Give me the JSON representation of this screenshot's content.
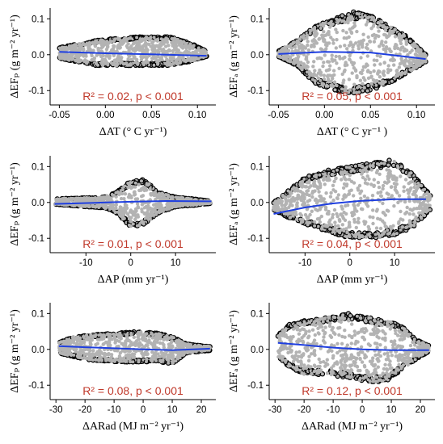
{
  "chart_data": [
    {
      "type": "scatter",
      "xlabel": "ΔAT (° C yr⁻¹)",
      "ylabel": "ΔEFₚ (g m⁻² yr⁻¹)",
      "annotation": "R² = 0.02, p < 0.001",
      "xlim": [
        -0.06,
        0.12
      ],
      "ylim": [
        -0.14,
        0.13
      ],
      "xticks": [
        -0.05,
        0.0,
        0.05,
        0.1
      ],
      "xtick_labels": [
        "-0.05",
        "0.00",
        "0.05",
        "0.10"
      ],
      "yticks": [
        -0.1,
        0.0,
        0.1
      ],
      "ytick_labels": [
        "-0.1",
        "0.0",
        "0.1"
      ],
      "cloud_x_range": [
        -0.05,
        0.11
      ],
      "cloud_envelope": [
        [
          -0.05,
          0.02,
          -0.01
        ],
        [
          -0.03,
          0.03,
          -0.02
        ],
        [
          -0.01,
          0.04,
          -0.03
        ],
        [
          0.01,
          0.045,
          -0.03
        ],
        [
          0.03,
          0.05,
          -0.03
        ],
        [
          0.05,
          0.05,
          -0.03
        ],
        [
          0.07,
          0.05,
          -0.03
        ],
        [
          0.09,
          0.035,
          -0.02
        ],
        [
          0.11,
          0.01,
          -0.005
        ]
      ],
      "fit_line": {
        "x": [
          -0.05,
          0.0,
          0.05,
          0.11
        ],
        "y": [
          0.008,
          0.004,
          0.001,
          -0.003
        ]
      },
      "colors": {
        "points": "#b3b3b3",
        "outline": "#000000",
        "fit": "#1f3fe0",
        "stats": "#c0392b"
      }
    },
    {
      "type": "scatter",
      "xlabel": "ΔAT (° C yr⁻¹ )",
      "ylabel": "ΔEFₐ (g m⁻² yr⁻¹)",
      "annotation": "R² = 0.05, p < 0.001",
      "xlim": [
        -0.06,
        0.12
      ],
      "ylim": [
        -0.14,
        0.13
      ],
      "xticks": [
        -0.05,
        0.0,
        0.05,
        0.1
      ],
      "xtick_labels": [
        "-0.05",
        "0.00",
        "0.05",
        "0.10"
      ],
      "yticks": [
        -0.1,
        0.0,
        0.1
      ],
      "ytick_labels": [
        "-0.1",
        "0.0",
        "0.1"
      ],
      "cloud_x_range": [
        -0.05,
        0.11
      ],
      "cloud_envelope": [
        [
          -0.05,
          0.01,
          -0.005
        ],
        [
          -0.03,
          0.04,
          -0.03
        ],
        [
          -0.01,
          0.08,
          -0.08
        ],
        [
          0.01,
          0.1,
          -0.1
        ],
        [
          0.03,
          0.12,
          -0.11
        ],
        [
          0.05,
          0.11,
          -0.1
        ],
        [
          0.07,
          0.08,
          -0.08
        ],
        [
          0.09,
          0.05,
          -0.05
        ],
        [
          0.11,
          0.0,
          -0.02
        ]
      ],
      "fit_line": {
        "x": [
          -0.05,
          0.0,
          0.05,
          0.11
        ],
        "y": [
          0.002,
          0.008,
          0.006,
          -0.012
        ]
      },
      "colors": {
        "points": "#b3b3b3",
        "outline": "#000000",
        "fit": "#1f3fe0",
        "stats": "#c0392b"
      }
    },
    {
      "type": "scatter",
      "xlabel": "ΔAP (mm yr⁻¹)",
      "ylabel": "ΔEFₚ (g m⁻² yr⁻¹)",
      "annotation": "R² = 0.01, p < 0.001",
      "xlim": [
        -18,
        19
      ],
      "ylim": [
        -0.14,
        0.13
      ],
      "xticks": [
        -10,
        0,
        10
      ],
      "xtick_labels": [
        "-10",
        "0",
        "10"
      ],
      "yticks": [
        -0.1,
        0.0,
        0.1
      ],
      "ytick_labels": [
        "-0.1",
        "0.0",
        "0.1"
      ],
      "cloud_x_range": [
        -17,
        18
      ],
      "cloud_envelope": [
        [
          -17,
          0.01,
          -0.005
        ],
        [
          -12,
          0.012,
          -0.01
        ],
        [
          -6,
          0.015,
          -0.015
        ],
        [
          -3,
          0.03,
          -0.03
        ],
        [
          0,
          0.06,
          -0.07
        ],
        [
          3,
          0.065,
          -0.06
        ],
        [
          6,
          0.03,
          -0.03
        ],
        [
          10,
          0.015,
          -0.012
        ],
        [
          14,
          0.01,
          -0.008
        ],
        [
          18,
          0.003,
          -0.002
        ]
      ],
      "fit_line": {
        "x": [
          -17,
          -8,
          0,
          8,
          18
        ],
        "y": [
          -0.004,
          -0.001,
          0.002,
          0.004,
          0.003
        ]
      },
      "colors": {
        "points": "#b3b3b3",
        "outline": "#000000",
        "fit": "#1f3fe0",
        "stats": "#c0392b"
      }
    },
    {
      "type": "scatter",
      "xlabel": "ΔAP (mm yr⁻¹)",
      "ylabel": "ΔEFₐ (g m⁻² yr⁻¹)",
      "annotation": "R² = 0.04, p < 0.001",
      "xlim": [
        -18,
        19
      ],
      "ylim": [
        -0.14,
        0.13
      ],
      "xticks": [
        -10,
        0,
        10
      ],
      "xtick_labels": [
        "-10",
        "0",
        "10"
      ],
      "yticks": [
        -0.1,
        0.0,
        0.1
      ],
      "ytick_labels": [
        "-0.1",
        "0.0",
        "0.1"
      ],
      "cloud_x_range": [
        -17,
        18
      ],
      "cloud_envelope": [
        [
          -17,
          0.0,
          -0.02
        ],
        [
          -14,
          0.03,
          -0.04
        ],
        [
          -10,
          0.07,
          -0.06
        ],
        [
          -5,
          0.09,
          -0.08
        ],
        [
          0,
          0.1,
          -0.1
        ],
        [
          5,
          0.11,
          -0.1
        ],
        [
          10,
          0.12,
          -0.09
        ],
        [
          14,
          0.08,
          -0.07
        ],
        [
          18,
          0.02,
          -0.02
        ]
      ],
      "fit_line": {
        "x": [
          -17,
          -10,
          -4,
          2,
          10,
          17
        ],
        "y": [
          -0.032,
          -0.014,
          -0.003,
          0.004,
          0.009,
          0.009
        ]
      },
      "colors": {
        "points": "#b3b3b3",
        "outline": "#000000",
        "fit": "#1f3fe0",
        "stats": "#c0392b"
      }
    },
    {
      "type": "scatter",
      "xlabel": "ΔARad (MJ m⁻² yr⁻¹)",
      "ylabel": "ΔEFₚ (g m⁻² yr⁻¹)",
      "annotation": "R² = 0.08, p < 0.001",
      "xlim": [
        -32,
        25
      ],
      "ylim": [
        -0.14,
        0.13
      ],
      "xticks": [
        -30,
        -20,
        -10,
        0,
        10,
        20
      ],
      "xtick_labels": [
        "-30",
        "-20",
        "-10",
        "0",
        "10",
        "20"
      ],
      "yticks": [
        -0.1,
        0.0,
        0.1
      ],
      "ytick_labels": [
        "-0.1",
        "0.0",
        "0.1"
      ],
      "cloud_x_range": [
        -29,
        23
      ],
      "cloud_envelope": [
        [
          -29,
          0.02,
          -0.01
        ],
        [
          -24,
          0.035,
          -0.02
        ],
        [
          -18,
          0.04,
          -0.03
        ],
        [
          -10,
          0.045,
          -0.035
        ],
        [
          -2,
          0.05,
          -0.035
        ],
        [
          5,
          0.045,
          -0.035
        ],
        [
          10,
          0.035,
          -0.04
        ],
        [
          15,
          0.015,
          -0.01
        ],
        [
          20,
          0.01,
          -0.005
        ],
        [
          23,
          0.008,
          -0.003
        ]
      ],
      "fit_line": {
        "x": [
          -29,
          -20,
          -10,
          0,
          10,
          23
        ],
        "y": [
          0.009,
          0.006,
          0.003,
          0.0,
          -0.002,
          0.002
        ]
      },
      "colors": {
        "points": "#b3b3b3",
        "outline": "#000000",
        "fit": "#1f3fe0",
        "stats": "#c0392b"
      }
    },
    {
      "type": "scatter",
      "xlabel": "ΔARad (MJ m⁻² yr⁻¹)",
      "ylabel": "ΔEFₐ (g m⁻² yr⁻¹)",
      "annotation": "R² = 0.12, p < 0.001",
      "xlim": [
        -32,
        25
      ],
      "ylim": [
        -0.14,
        0.13
      ],
      "xticks": [
        -30,
        -20,
        -10,
        0,
        10,
        20
      ],
      "xtick_labels": [
        "-30",
        "-20",
        "-10",
        "0",
        "10",
        "20"
      ],
      "yticks": [
        -0.1,
        0.0,
        0.1
      ],
      "ytick_labels": [
        "-0.1",
        "0.0",
        "0.1"
      ],
      "cloud_x_range": [
        -29,
        23
      ],
      "cloud_envelope": [
        [
          -29,
          0.04,
          -0.02
        ],
        [
          -25,
          0.07,
          -0.05
        ],
        [
          -20,
          0.08,
          -0.07
        ],
        [
          -12,
          0.09,
          -0.07
        ],
        [
          -5,
          0.1,
          -0.08
        ],
        [
          2,
          0.09,
          -0.09
        ],
        [
          8,
          0.08,
          -0.09
        ],
        [
          13,
          0.07,
          -0.06
        ],
        [
          18,
          0.03,
          -0.03
        ],
        [
          23,
          0.01,
          -0.005
        ]
      ],
      "fit_line": {
        "x": [
          -29,
          -20,
          -10,
          0,
          10,
          23
        ],
        "y": [
          0.018,
          0.012,
          0.005,
          0.0,
          -0.002,
          -0.002
        ]
      },
      "colors": {
        "points": "#b3b3b3",
        "outline": "#000000",
        "fit": "#1f3fe0",
        "stats": "#c0392b"
      }
    }
  ]
}
